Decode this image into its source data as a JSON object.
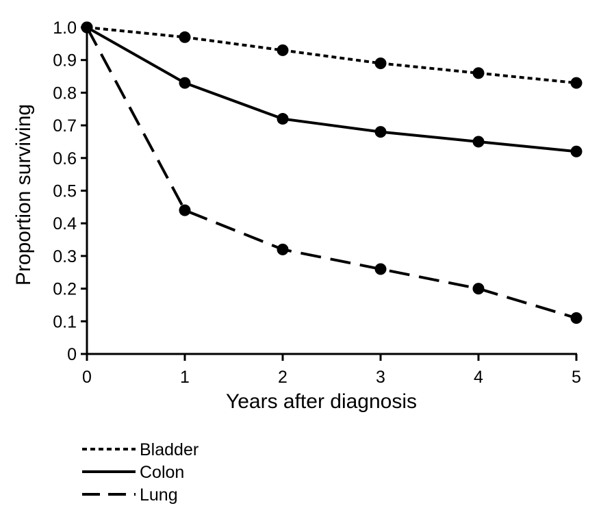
{
  "chart_data": {
    "type": "line",
    "title": "",
    "xlabel": "Years after diagnosis",
    "ylabel": "Proportion surviving",
    "x": [
      0,
      1,
      2,
      3,
      4,
      5
    ],
    "xlim": [
      0,
      5
    ],
    "ylim": [
      0,
      1.0
    ],
    "x_ticks": [
      "0",
      "1",
      "2",
      "3",
      "4",
      "5"
    ],
    "y_ticks": [
      "0",
      "0.1",
      "0.2",
      "0.3",
      "0.4",
      "0.5",
      "0.6",
      "0.7",
      "0.8",
      "0.9",
      "1.0"
    ],
    "grid": false,
    "legend_position": "bottom-left",
    "series": [
      {
        "name": "Bladder",
        "style": "dotted",
        "color": "#000000",
        "values": [
          1.0,
          0.97,
          0.93,
          0.89,
          0.86,
          0.83
        ]
      },
      {
        "name": "Colon",
        "style": "solid",
        "color": "#000000",
        "values": [
          1.0,
          0.83,
          0.72,
          0.68,
          0.65,
          0.62
        ]
      },
      {
        "name": "Lung",
        "style": "dashed",
        "color": "#000000",
        "values": [
          1.0,
          0.44,
          0.32,
          0.26,
          0.2,
          0.11
        ]
      }
    ]
  }
}
